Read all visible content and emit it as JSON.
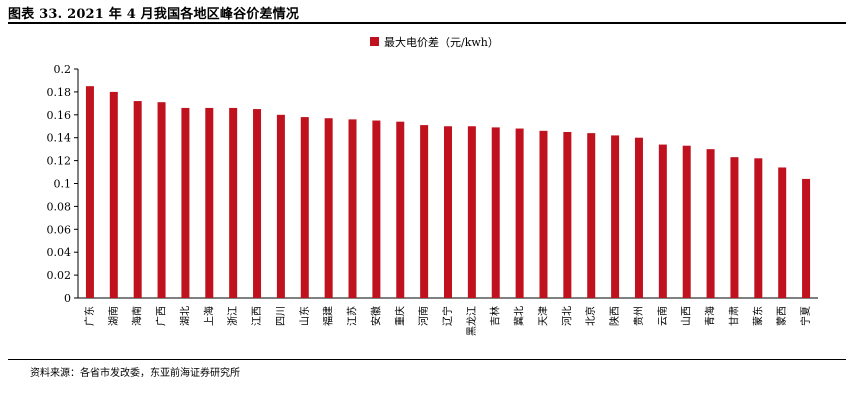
{
  "figure": {
    "title": "图表 33. 2021 年 4 月我国各地区峰谷价差情况",
    "source": "资料来源：各省市发改委，东亚前海证券研究所"
  },
  "chart_data": {
    "type": "bar",
    "title": "",
    "xlabel": "",
    "ylabel": "",
    "ylim": [
      0,
      0.2
    ],
    "yticks": [
      "0",
      "0.02",
      "0.04",
      "0.06",
      "0.08",
      "0.1",
      "0.12",
      "0.14",
      "0.16",
      "0.18",
      "0.2"
    ],
    "grid": false,
    "legend_position": "top-center",
    "color": "#c0121e",
    "categories": [
      "广东",
      "湖南",
      "海南",
      "广西",
      "湖北",
      "上海",
      "浙江",
      "江西",
      "四川",
      "山东",
      "福建",
      "江苏",
      "安徽",
      "重庆",
      "河南",
      "辽宁",
      "黑龙江",
      "吉林",
      "冀北",
      "天津",
      "河北",
      "北京",
      "陕西",
      "贵州",
      "云南",
      "山西",
      "青海",
      "甘肃",
      "蒙东",
      "蒙西",
      "宁夏"
    ],
    "series": [
      {
        "name": "最大电价差（元/kwh）",
        "values": [
          0.185,
          0.18,
          0.172,
          0.171,
          0.166,
          0.166,
          0.166,
          0.165,
          0.16,
          0.158,
          0.157,
          0.156,
          0.155,
          0.154,
          0.151,
          0.15,
          0.15,
          0.149,
          0.148,
          0.146,
          0.145,
          0.144,
          0.142,
          0.14,
          0.134,
          0.133,
          0.13,
          0.123,
          0.122,
          0.114,
          0.104
        ]
      }
    ]
  }
}
